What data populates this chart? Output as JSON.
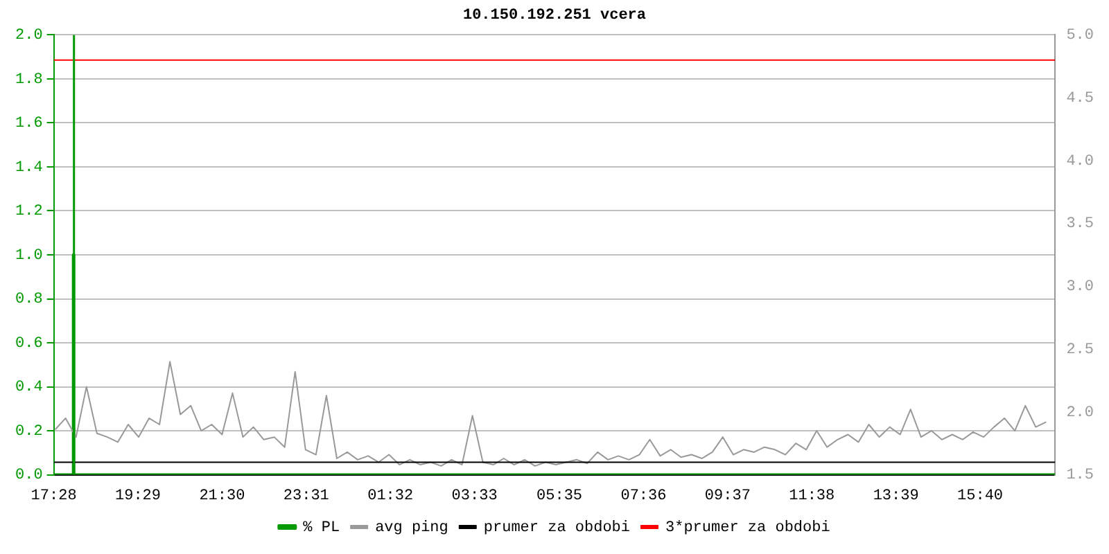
{
  "chart_data": {
    "type": "line",
    "title": "10.150.192.251 vcera",
    "xlim": [
      "--01-01T17:28",
      "--01-02T17:28"
    ],
    "xticks": [
      {
        "value": "--01-01T17:28",
        "label": "17:28"
      },
      {
        "value": "--01-01T19:29",
        "label": "19:29"
      },
      {
        "value": "--01-01T21:30",
        "label": "21:30"
      },
      {
        "value": "--01-01T23:31",
        "label": "23:31"
      },
      {
        "value": "--01-02T01:32",
        "label": "01:32"
      },
      {
        "value": "--01-02T03:33",
        "label": "03:33"
      },
      {
        "value": "--01-02T05:35",
        "label": "05:35"
      },
      {
        "value": "--01-02T07:36",
        "label": "07:36"
      },
      {
        "value": "--01-02T09:37",
        "label": "09:37"
      },
      {
        "value": "--01-02T11:38",
        "label": "11:38"
      },
      {
        "value": "--01-02T13:39",
        "label": "13:39"
      },
      {
        "value": "--01-02T15:40",
        "label": "15:40"
      }
    ],
    "ylim": [
      0,
      2
    ],
    "yticks": [
      {
        "value": 0,
        "label": "0.0"
      },
      {
        "value": 0.2,
        "label": "0.2"
      },
      {
        "value": 0.4,
        "label": "0.4"
      },
      {
        "value": 0.6,
        "label": "0.6"
      },
      {
        "value": 0.8,
        "label": "0.8"
      },
      {
        "value": 1,
        "label": "1.0"
      },
      {
        "value": 1.2,
        "label": "1.2"
      },
      {
        "value": 1.4,
        "label": "1.4"
      },
      {
        "value": 1.6,
        "label": "1.6"
      },
      {
        "value": 1.8,
        "label": "1.8"
      },
      {
        "value": 2,
        "label": "2.0"
      }
    ],
    "y2lim": [
      1.5,
      5
    ],
    "y2ticks": [
      1.5,
      {
        "value": 2,
        "label": "2.0"
      },
      2.5,
      {
        "value": 3,
        "label": "3.0"
      },
      3.5,
      {
        "value": 4,
        "label": "4.0"
      },
      4.5,
      {
        "value": 5,
        "label": "5.0"
      }
    ],
    "grid": "y",
    "legend": "bottom",
    "marker": "none",
    "ref_lines": [
      {
        "axis": "x",
        "value": "--01-01T17:57",
        "color": "#009900"
      }
    ],
    "series": [
      {
        "name": "% PL",
        "color": "#009900",
        "type": "step",
        "x": [
          "--01-01T17:28",
          "--01-01T17:56",
          "--01-01T17:57",
          "--01-01T17:58",
          "--01-02T17:28"
        ],
        "values": [
          0,
          0,
          1,
          0,
          0
        ]
      },
      {
        "name": "avg ping",
        "color": "#999999",
        "axis": "y2",
        "x": [
          "--01-01T17:30",
          "--01-01T17:45",
          "--01-01T18:00",
          "--01-01T18:15",
          "--01-01T18:30",
          "--01-01T18:45",
          "--01-01T19:00",
          "--01-01T19:15",
          "--01-01T19:30",
          "--01-01T19:45",
          "--01-01T20:00",
          "--01-01T20:15",
          "--01-01T20:30",
          "--01-01T20:45",
          "--01-01T21:00",
          "--01-01T21:15",
          "--01-01T21:30",
          "--01-01T21:45",
          "--01-01T22:00",
          "--01-01T22:15",
          "--01-01T22:30",
          "--01-01T22:45",
          "--01-01T23:00",
          "--01-01T23:15",
          "--01-01T23:30",
          "--01-01T23:45",
          "--01-02T00:00",
          "--01-02T00:15",
          "--01-02T00:30",
          "--01-02T00:45",
          "--01-02T01:00",
          "--01-02T01:15",
          "--01-02T01:30",
          "--01-02T01:45",
          "--01-02T02:00",
          "--01-02T02:15",
          "--01-02T02:30",
          "--01-02T02:45",
          "--01-02T03:00",
          "--01-02T03:15",
          "--01-02T03:30",
          "--01-02T03:45",
          "--01-02T04:00",
          "--01-02T04:15",
          "--01-02T04:30",
          "--01-02T04:45",
          "--01-02T05:00",
          "--01-02T05:15",
          "--01-02T05:30",
          "--01-02T05:45",
          "--01-02T06:00",
          "--01-02T06:15",
          "--01-02T06:30",
          "--01-02T06:45",
          "--01-02T07:00",
          "--01-02T07:15",
          "--01-02T07:30",
          "--01-02T07:45",
          "--01-02T08:00",
          "--01-02T08:15",
          "--01-02T08:30",
          "--01-02T08:45",
          "--01-02T09:00",
          "--01-02T09:15",
          "--01-02T09:30",
          "--01-02T09:45",
          "--01-02T10:00",
          "--01-02T10:15",
          "--01-02T10:30",
          "--01-02T10:45",
          "--01-02T11:00",
          "--01-02T11:15",
          "--01-02T11:30",
          "--01-02T11:45",
          "--01-02T12:00",
          "--01-02T12:15",
          "--01-02T12:30",
          "--01-02T12:45",
          "--01-02T13:00",
          "--01-02T13:15",
          "--01-02T13:30",
          "--01-02T13:45",
          "--01-02T14:00",
          "--01-02T14:15",
          "--01-02T14:30",
          "--01-02T14:45",
          "--01-02T15:00",
          "--01-02T15:15",
          "--01-02T15:30",
          "--01-02T15:45",
          "--01-02T16:00",
          "--01-02T16:15",
          "--01-02T16:30",
          "--01-02T16:45",
          "--01-02T17:00",
          "--01-02T17:15"
        ],
        "values": [
          1.86,
          1.95,
          1.8,
          2.2,
          1.83,
          1.8,
          1.76,
          1.9,
          1.8,
          1.95,
          1.9,
          2.4,
          1.98,
          2.05,
          1.85,
          1.9,
          1.82,
          2.15,
          1.8,
          1.88,
          1.78,
          1.8,
          1.72,
          2.32,
          1.7,
          1.66,
          2.13,
          1.63,
          1.68,
          1.62,
          1.65,
          1.6,
          1.66,
          1.58,
          1.62,
          1.58,
          1.6,
          1.57,
          1.62,
          1.58,
          1.97,
          1.6,
          1.58,
          1.63,
          1.58,
          1.62,
          1.57,
          1.6,
          1.58,
          1.6,
          1.62,
          1.59,
          1.68,
          1.62,
          1.65,
          1.62,
          1.66,
          1.78,
          1.65,
          1.7,
          1.64,
          1.66,
          1.63,
          1.68,
          1.8,
          1.66,
          1.7,
          1.68,
          1.72,
          1.7,
          1.66,
          1.75,
          1.7,
          1.85,
          1.72,
          1.78,
          1.82,
          1.76,
          1.9,
          1.8,
          1.88,
          1.82,
          2.02,
          1.8,
          1.85,
          1.78,
          1.82,
          1.78,
          1.84,
          1.8,
          1.88,
          1.95,
          1.85,
          2.05,
          1.88,
          1.92
        ]
      },
      {
        "name": "prumer za obdobi",
        "color": "#000000",
        "axis": "y2",
        "x": [
          "--01-01T17:28",
          "--01-02T17:28"
        ],
        "values": [
          1.6,
          1.6
        ]
      },
      {
        "name": "3*prumer za obdobi",
        "color": "#ff0000",
        "axis": "y2",
        "x": [
          "--01-01T17:28",
          "--01-02T17:28"
        ],
        "values": [
          4.8,
          4.8
        ]
      }
    ]
  }
}
